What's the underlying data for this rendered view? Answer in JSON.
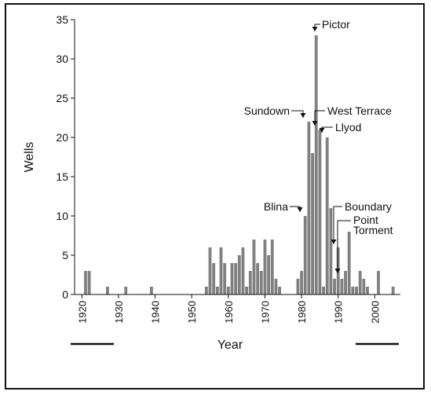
{
  "chart_data": {
    "type": "bar",
    "title": "",
    "xlabel": "Year",
    "ylabel": "Wells",
    "xlim": [
      1918,
      2007
    ],
    "ylim": [
      0,
      35
    ],
    "grid": false,
    "bar_color": "#808080",
    "x_ticks": [
      1920,
      1930,
      1940,
      1950,
      1960,
      1970,
      1980,
      1990,
      2000
    ],
    "y_ticks": [
      0,
      5,
      10,
      15,
      20,
      25,
      30,
      35
    ],
    "x": [
      1921,
      1922,
      1927,
      1932,
      1939,
      1954,
      1955,
      1956,
      1957,
      1958,
      1959,
      1960,
      1961,
      1962,
      1963,
      1964,
      1965,
      1966,
      1967,
      1968,
      1969,
      1970,
      1971,
      1972,
      1973,
      1974,
      1979,
      1980,
      1981,
      1982,
      1983,
      1984,
      1985,
      1986,
      1987,
      1988,
      1989,
      1990,
      1991,
      1992,
      1993,
      1994,
      1995,
      1996,
      1997,
      1998,
      2001,
      2005
    ],
    "values": [
      3,
      3,
      1,
      1,
      1,
      1,
      6,
      4,
      1,
      6,
      4,
      1,
      4,
      4,
      5,
      6,
      1,
      3,
      7,
      4,
      3,
      7,
      5,
      7,
      2,
      1,
      2,
      3,
      10,
      22,
      18,
      33,
      21,
      1,
      20,
      11,
      2,
      6,
      2,
      3,
      8,
      1,
      1,
      3,
      2,
      1,
      3,
      1
    ],
    "annotations": [
      {
        "text": "Pictor",
        "x": 1984,
        "y": 33
      },
      {
        "text": "Sundown",
        "x": 1982,
        "y": 22
      },
      {
        "text": "West Terrace",
        "x": 1985,
        "y": 21
      },
      {
        "text": "Llyod",
        "x": 1987,
        "y": 20
      },
      {
        "text": "Blina",
        "x": 1981,
        "y": 10
      },
      {
        "text": "Boundary",
        "x": 1990,
        "y": 6
      },
      {
        "text": "Point",
        "x": 1991,
        "y": 2
      },
      {
        "text": "Torment",
        "x": 1991,
        "y": 2
      }
    ]
  }
}
